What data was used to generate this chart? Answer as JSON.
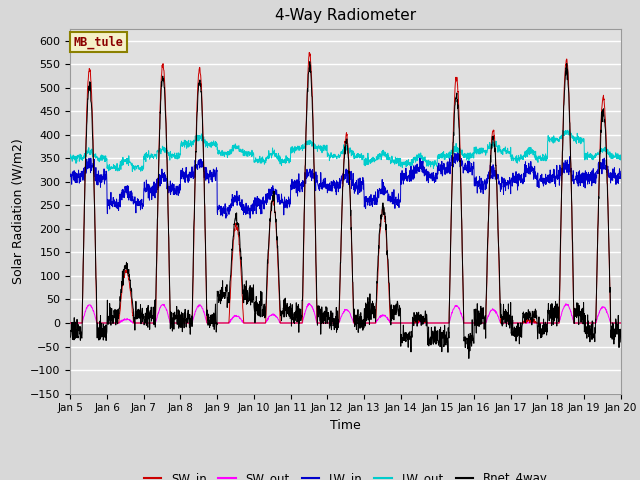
{
  "title": "4-Way Radiometer",
  "xlabel": "Time",
  "ylabel": "Solar Radiation (W/m2)",
  "ylim": [
    -150,
    625
  ],
  "yticks": [
    -150,
    -100,
    -50,
    0,
    50,
    100,
    150,
    200,
    250,
    300,
    350,
    400,
    450,
    500,
    550,
    600
  ],
  "xlim": [
    0,
    15
  ],
  "xtick_labels": [
    "Jan 5",
    "Jan 6",
    "Jan 7",
    "Jan 8",
    "Jan 9",
    "Jan 10",
    "Jan 11",
    "Jan 12",
    "Jan 13",
    "Jan 14",
    "Jan 15",
    "Jan 16",
    "Jan 17",
    "Jan 18",
    "Jan 19",
    "Jan 20"
  ],
  "annotation_text": "MB_tule",
  "annotation_box_color": "#f5f0c8",
  "annotation_box_edge": "#8b8000",
  "annotation_text_color": "#8b0000",
  "series_colors": {
    "SW_in": "#cc0000",
    "SW_out": "#ff00ff",
    "LW_in": "#0000cc",
    "LW_out": "#00cccc",
    "Rnet_4way": "#000000"
  },
  "background_color": "#e0e0e0",
  "grid_color": "#ffffff",
  "title_fontsize": 11,
  "label_fontsize": 9,
  "tick_fontsize": 8,
  "figsize": [
    6.4,
    4.8
  ],
  "dpi": 100
}
